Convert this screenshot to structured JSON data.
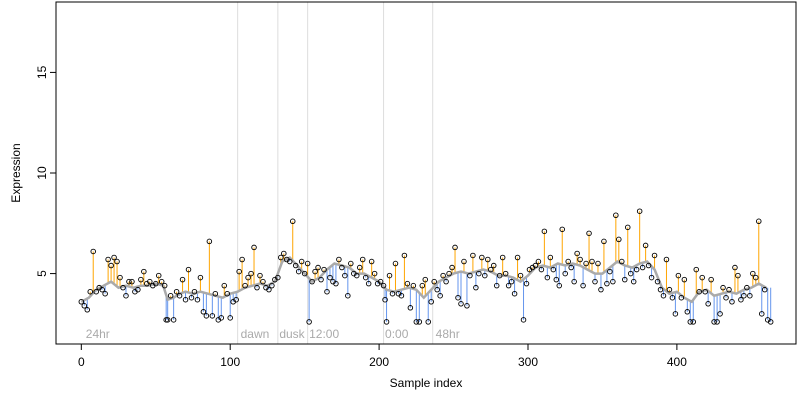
{
  "chart_data": {
    "type": "scatter",
    "title": "",
    "xlabel": "Sample index",
    "ylabel": "Expression",
    "xlim": [
      -17,
      480
    ],
    "ylim": [
      1.5,
      18.5
    ],
    "x_ticks": [
      0,
      100,
      200,
      300,
      400
    ],
    "y_ticks": [
      5,
      10,
      15
    ],
    "grid": false,
    "legend": "none",
    "colors": {
      "trend": "#aaaaaa",
      "above": "#ffa500",
      "below": "#6495ed",
      "point_stroke": "#000000",
      "separator": "#dddddd",
      "annotation": "#aaaaaa"
    },
    "separators": [
      105,
      132,
      152,
      203,
      236
    ],
    "annotations": [
      {
        "x": 3,
        "label": "24hr"
      },
      {
        "x": 107,
        "label": "dawn"
      },
      {
        "x": 133,
        "label": "dusk"
      },
      {
        "x": 153,
        "label": "12:00"
      },
      {
        "x": 204,
        "label": "0:00"
      },
      {
        "x": 238,
        "label": "48hr"
      }
    ],
    "trend_points": [
      [
        0,
        3.6
      ],
      [
        5,
        3.8
      ],
      [
        10,
        4.2
      ],
      [
        15,
        4.4
      ],
      [
        20,
        4.6
      ],
      [
        25,
        4.3
      ],
      [
        30,
        4.4
      ],
      [
        35,
        4.3
      ],
      [
        40,
        4.4
      ],
      [
        45,
        4.4
      ],
      [
        50,
        4.5
      ],
      [
        55,
        4.4
      ],
      [
        58,
        3.7
      ],
      [
        62,
        3.8
      ],
      [
        66,
        4.0
      ],
      [
        70,
        4.1
      ],
      [
        75,
        4.0
      ],
      [
        80,
        4.1
      ],
      [
        85,
        4.0
      ],
      [
        90,
        3.9
      ],
      [
        95,
        3.8
      ],
      [
        100,
        4.0
      ],
      [
        105,
        4.1
      ],
      [
        110,
        4.3
      ],
      [
        115,
        4.4
      ],
      [
        120,
        4.5
      ],
      [
        125,
        4.4
      ],
      [
        130,
        4.6
      ],
      [
        135,
        5.6
      ],
      [
        140,
        5.8
      ],
      [
        145,
        5.4
      ],
      [
        150,
        5.0
      ],
      [
        155,
        4.6
      ],
      [
        160,
        4.8
      ],
      [
        165,
        5.2
      ],
      [
        170,
        5.5
      ],
      [
        175,
        5.4
      ],
      [
        180,
        5.3
      ],
      [
        185,
        5.0
      ],
      [
        190,
        5.0
      ],
      [
        195,
        4.8
      ],
      [
        200,
        4.6
      ],
      [
        205,
        4.2
      ],
      [
        210,
        4.1
      ],
      [
        215,
        4.2
      ],
      [
        220,
        4.3
      ],
      [
        225,
        4.2
      ],
      [
        230,
        3.8
      ],
      [
        235,
        4.2
      ],
      [
        240,
        4.6
      ],
      [
        245,
        4.8
      ],
      [
        250,
        5.0
      ],
      [
        255,
        5.1
      ],
      [
        260,
        5.0
      ],
      [
        265,
        5.1
      ],
      [
        270,
        5.2
      ],
      [
        275,
        5.1
      ],
      [
        280,
        4.9
      ],
      [
        285,
        4.9
      ],
      [
        290,
        4.8
      ],
      [
        295,
        4.6
      ],
      [
        300,
        4.9
      ],
      [
        305,
        5.3
      ],
      [
        310,
        5.4
      ],
      [
        315,
        5.3
      ],
      [
        320,
        5.5
      ],
      [
        325,
        5.4
      ],
      [
        330,
        5.5
      ],
      [
        335,
        5.4
      ],
      [
        340,
        5.2
      ],
      [
        345,
        5.0
      ],
      [
        350,
        5.0
      ],
      [
        355,
        5.3
      ],
      [
        360,
        5.6
      ],
      [
        365,
        5.4
      ],
      [
        370,
        5.3
      ],
      [
        375,
        5.5
      ],
      [
        380,
        5.6
      ],
      [
        385,
        5.2
      ],
      [
        390,
        4.3
      ],
      [
        395,
        4.0
      ],
      [
        400,
        4.1
      ],
      [
        405,
        3.8
      ],
      [
        410,
        3.6
      ],
      [
        415,
        4.1
      ],
      [
        420,
        4.2
      ],
      [
        425,
        3.9
      ],
      [
        430,
        4.0
      ],
      [
        435,
        4.1
      ],
      [
        440,
        4.0
      ],
      [
        445,
        4.2
      ],
      [
        450,
        4.3
      ],
      [
        455,
        4.5
      ],
      [
        460,
        4.3
      ]
    ],
    "points": [
      [
        0,
        3.6
      ],
      [
        2,
        3.4
      ],
      [
        4,
        3.2
      ],
      [
        6,
        4.1
      ],
      [
        8,
        6.1
      ],
      [
        10,
        4.1
      ],
      [
        12,
        4.3
      ],
      [
        14,
        4.2
      ],
      [
        16,
        4.0
      ],
      [
        18,
        5.7
      ],
      [
        20,
        5.4
      ],
      [
        22,
        5.8
      ],
      [
        24,
        5.6
      ],
      [
        26,
        4.8
      ],
      [
        28,
        4.3
      ],
      [
        30,
        3.9
      ],
      [
        32,
        4.6
      ],
      [
        34,
        4.6
      ],
      [
        36,
        4.1
      ],
      [
        38,
        4.2
      ],
      [
        40,
        4.7
      ],
      [
        42,
        5.1
      ],
      [
        44,
        4.5
      ],
      [
        46,
        4.6
      ],
      [
        48,
        4.4
      ],
      [
        50,
        4.5
      ],
      [
        52,
        4.9
      ],
      [
        54,
        4.6
      ],
      [
        56,
        4.4
      ],
      [
        57,
        2.7
      ],
      [
        58,
        2.7
      ],
      [
        60,
        3.9
      ],
      [
        62,
        2.7
      ],
      [
        64,
        4.1
      ],
      [
        66,
        3.9
      ],
      [
        68,
        4.7
      ],
      [
        70,
        3.7
      ],
      [
        72,
        5.2
      ],
      [
        74,
        3.8
      ],
      [
        76,
        4.1
      ],
      [
        78,
        3.7
      ],
      [
        80,
        4.8
      ],
      [
        82,
        3.1
      ],
      [
        84,
        2.9
      ],
      [
        86,
        6.6
      ],
      [
        88,
        2.9
      ],
      [
        90,
        4.0
      ],
      [
        92,
        2.7
      ],
      [
        94,
        2.8
      ],
      [
        96,
        4.4
      ],
      [
        98,
        4.0
      ],
      [
        100,
        2.8
      ],
      [
        102,
        3.6
      ],
      [
        104,
        3.7
      ],
      [
        106,
        5.1
      ],
      [
        108,
        5.7
      ],
      [
        110,
        4.4
      ],
      [
        112,
        4.8
      ],
      [
        114,
        5.0
      ],
      [
        116,
        6.3
      ],
      [
        118,
        4.3
      ],
      [
        120,
        4.9
      ],
      [
        122,
        4.6
      ],
      [
        124,
        4.3
      ],
      [
        126,
        4.2
      ],
      [
        128,
        4.4
      ],
      [
        130,
        4.7
      ],
      [
        132,
        4.8
      ],
      [
        134,
        5.8
      ],
      [
        136,
        6.0
      ],
      [
        138,
        5.7
      ],
      [
        140,
        5.6
      ],
      [
        142,
        7.6
      ],
      [
        144,
        5.4
      ],
      [
        146,
        5.1
      ],
      [
        148,
        5.6
      ],
      [
        150,
        5.0
      ],
      [
        152,
        5.5
      ],
      [
        153,
        2.6
      ],
      [
        155,
        4.6
      ],
      [
        157,
        5.1
      ],
      [
        159,
        5.3
      ],
      [
        161,
        4.7
      ],
      [
        163,
        5.2
      ],
      [
        165,
        4.1
      ],
      [
        167,
        4.8
      ],
      [
        169,
        4.6
      ],
      [
        171,
        4.5
      ],
      [
        173,
        5.7
      ],
      [
        175,
        5.3
      ],
      [
        177,
        4.9
      ],
      [
        179,
        3.9
      ],
      [
        181,
        5.5
      ],
      [
        183,
        5.0
      ],
      [
        185,
        4.9
      ],
      [
        187,
        5.3
      ],
      [
        189,
        5.7
      ],
      [
        191,
        4.8
      ],
      [
        193,
        4.5
      ],
      [
        195,
        5.6
      ],
      [
        197,
        5.0
      ],
      [
        199,
        4.5
      ],
      [
        201,
        4.6
      ],
      [
        203,
        4.4
      ],
      [
        204,
        3.7
      ],
      [
        205,
        2.6
      ],
      [
        207,
        4.9
      ],
      [
        209,
        4.0
      ],
      [
        211,
        5.5
      ],
      [
        213,
        4.0
      ],
      [
        215,
        3.9
      ],
      [
        217,
        5.9
      ],
      [
        219,
        4.5
      ],
      [
        221,
        3.3
      ],
      [
        223,
        4.4
      ],
      [
        225,
        2.6
      ],
      [
        227,
        2.6
      ],
      [
        229,
        4.4
      ],
      [
        231,
        4.7
      ],
      [
        233,
        2.6
      ],
      [
        235,
        3.6
      ],
      [
        237,
        4.6
      ],
      [
        239,
        4.2
      ],
      [
        241,
        3.9
      ],
      [
        243,
        4.9
      ],
      [
        245,
        4.6
      ],
      [
        247,
        5.0
      ],
      [
        249,
        5.3
      ],
      [
        251,
        6.3
      ],
      [
        253,
        3.8
      ],
      [
        255,
        3.5
      ],
      [
        257,
        5.6
      ],
      [
        259,
        3.4
      ],
      [
        261,
        4.9
      ],
      [
        263,
        5.9
      ],
      [
        265,
        4.3
      ],
      [
        267,
        5.0
      ],
      [
        269,
        5.8
      ],
      [
        271,
        4.9
      ],
      [
        273,
        5.7
      ],
      [
        275,
        5.2
      ],
      [
        277,
        5.4
      ],
      [
        279,
        4.4
      ],
      [
        281,
        4.9
      ],
      [
        283,
        5.8
      ],
      [
        285,
        5.0
      ],
      [
        287,
        4.4
      ],
      [
        289,
        4.6
      ],
      [
        291,
        4.0
      ],
      [
        293,
        5.8
      ],
      [
        295,
        4.9
      ],
      [
        297,
        2.7
      ],
      [
        299,
        4.5
      ],
      [
        301,
        5.2
      ],
      [
        303,
        5.3
      ],
      [
        305,
        5.4
      ],
      [
        307,
        5.6
      ],
      [
        309,
        5.2
      ],
      [
        311,
        7.1
      ],
      [
        313,
        4.8
      ],
      [
        315,
        5.8
      ],
      [
        317,
        5.2
      ],
      [
        319,
        4.7
      ],
      [
        321,
        4.4
      ],
      [
        323,
        7.2
      ],
      [
        325,
        5.0
      ],
      [
        327,
        5.6
      ],
      [
        329,
        5.3
      ],
      [
        331,
        4.6
      ],
      [
        333,
        6.0
      ],
      [
        335,
        5.7
      ],
      [
        337,
        4.4
      ],
      [
        339,
        5.5
      ],
      [
        341,
        7.0
      ],
      [
        343,
        5.6
      ],
      [
        345,
        4.6
      ],
      [
        347,
        5.5
      ],
      [
        349,
        4.2
      ],
      [
        351,
        6.6
      ],
      [
        353,
        4.5
      ],
      [
        355,
        5.1
      ],
      [
        357,
        4.6
      ],
      [
        359,
        7.9
      ],
      [
        361,
        6.7
      ],
      [
        363,
        5.6
      ],
      [
        365,
        4.7
      ],
      [
        367,
        7.3
      ],
      [
        369,
        5.0
      ],
      [
        371,
        4.6
      ],
      [
        373,
        5.2
      ],
      [
        375,
        8.1
      ],
      [
        377,
        5.3
      ],
      [
        379,
        6.4
      ],
      [
        381,
        5.4
      ],
      [
        383,
        4.8
      ],
      [
        385,
        5.9
      ],
      [
        387,
        4.6
      ],
      [
        389,
        4.2
      ],
      [
        391,
        3.9
      ],
      [
        393,
        5.7
      ],
      [
        395,
        4.2
      ],
      [
        397,
        3.8
      ],
      [
        399,
        3.0
      ],
      [
        401,
        4.9
      ],
      [
        403,
        3.8
      ],
      [
        405,
        4.7
      ],
      [
        407,
        3.1
      ],
      [
        409,
        2.6
      ],
      [
        411,
        2.6
      ],
      [
        413,
        5.2
      ],
      [
        415,
        4.1
      ],
      [
        417,
        4.8
      ],
      [
        419,
        4.1
      ],
      [
        421,
        3.5
      ],
      [
        423,
        4.7
      ],
      [
        425,
        2.6
      ],
      [
        427,
        2.6
      ],
      [
        429,
        3.0
      ],
      [
        431,
        4.3
      ],
      [
        433,
        3.8
      ],
      [
        435,
        4.2
      ],
      [
        437,
        3.6
      ],
      [
        439,
        5.3
      ],
      [
        441,
        4.9
      ],
      [
        443,
        3.7
      ],
      [
        445,
        3.9
      ],
      [
        447,
        4.3
      ],
      [
        449,
        3.9
      ],
      [
        451,
        5.0
      ],
      [
        453,
        4.8
      ],
      [
        455,
        7.6
      ],
      [
        457,
        3.0
      ],
      [
        459,
        4.2
      ],
      [
        461,
        2.7
      ],
      [
        463,
        2.6
      ]
    ]
  }
}
